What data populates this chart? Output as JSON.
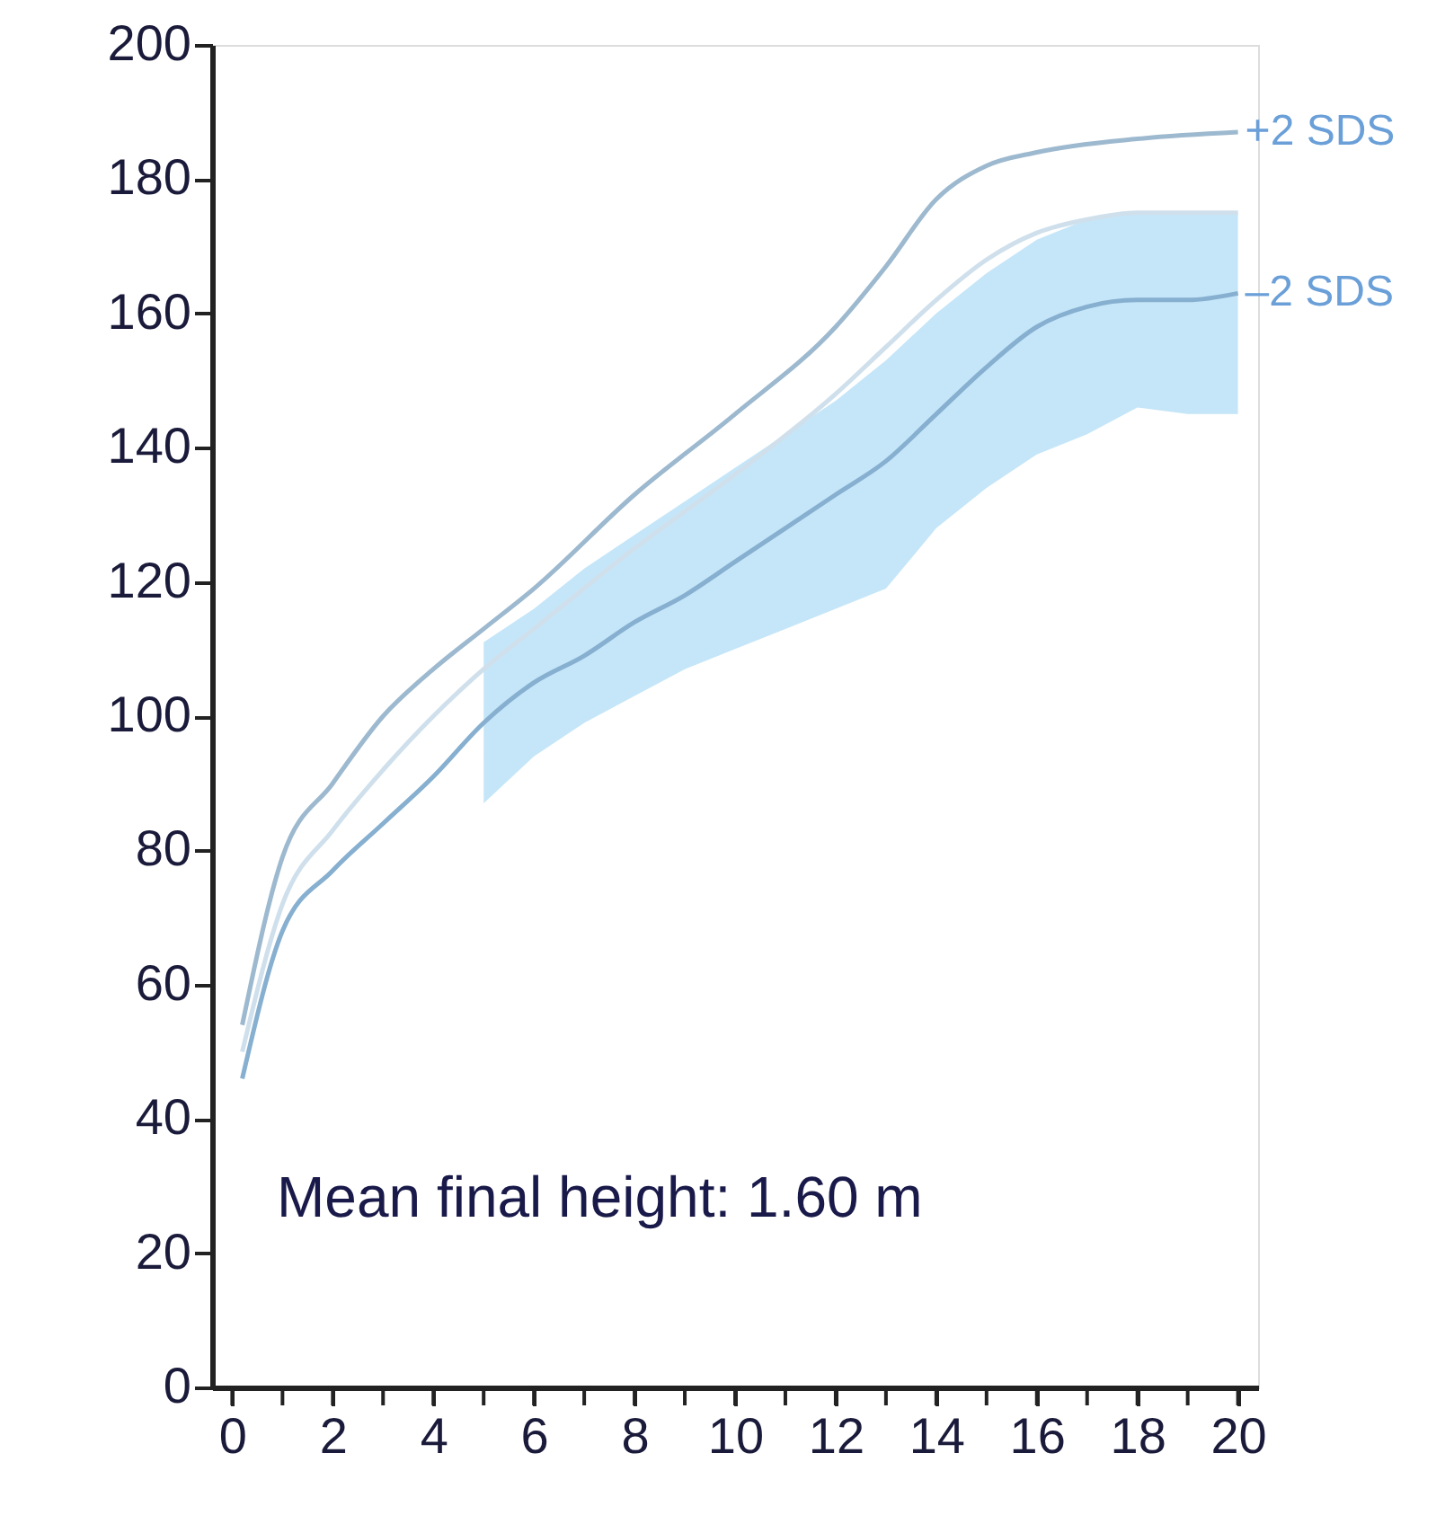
{
  "chart_data": {
    "type": "line",
    "xlim": [
      -0.4,
      20.4
    ],
    "ylim": [
      0,
      200
    ],
    "xticks": [
      0,
      {
        "value": 1,
        "label": null
      },
      2,
      {
        "value": 3,
        "label": null
      },
      4,
      {
        "value": 5,
        "label": null
      },
      6,
      {
        "value": 7,
        "label": null
      },
      8,
      {
        "value": 9,
        "label": null
      },
      10,
      {
        "value": 11,
        "label": null
      },
      12,
      {
        "value": 13,
        "label": null
      },
      14,
      {
        "value": 15,
        "label": null
      },
      16,
      {
        "value": 17,
        "label": null
      },
      18,
      {
        "value": 19,
        "label": null
      },
      20
    ],
    "yticks": [
      0,
      20,
      40,
      60,
      80,
      100,
      120,
      140,
      160,
      180,
      200
    ],
    "grid": false,
    "line_style": "solid",
    "marker": "none",
    "annotations": [
      "Mean final height: 1.60 m"
    ],
    "series": [
      {
        "name": "+2 SDS",
        "color": "#9db9cf",
        "x": [
          0.2,
          1,
          2,
          3,
          4,
          5,
          6,
          8,
          10,
          12,
          13,
          14,
          15,
          16,
          18,
          20
        ],
        "values": [
          54,
          79,
          90,
          100,
          107,
          113,
          119,
          133,
          145,
          158,
          167,
          177,
          182,
          184,
          186,
          187
        ]
      },
      {
        "color": "#cfe0ec",
        "x": [
          0.2,
          1,
          2,
          3,
          4,
          5,
          6,
          8,
          10,
          12,
          13,
          14,
          15,
          16,
          17,
          18,
          20
        ],
        "values": [
          50,
          72,
          83,
          92,
          100,
          107,
          113,
          125,
          136,
          148,
          155,
          162,
          168,
          172,
          174,
          175,
          175
        ]
      },
      {
        "name": "–2 SDS",
        "color": "#86afd0",
        "x": [
          0.2,
          1,
          2,
          3,
          4,
          5,
          6,
          7,
          8,
          9,
          10,
          11,
          12,
          13,
          14,
          15,
          16,
          17,
          18,
          19,
          20
        ],
        "values": [
          46,
          68,
          77,
          84,
          91,
          99,
          105,
          109,
          114,
          118,
          123,
          128,
          133,
          138,
          145,
          152,
          158,
          161,
          162,
          162,
          163
        ],
        "lower": [
          null,
          null,
          null,
          null,
          null,
          87,
          94,
          99,
          103,
          107,
          110,
          113,
          116,
          119,
          128,
          134,
          139,
          142,
          146,
          145,
          145
        ],
        "upper": [
          null,
          null,
          null,
          null,
          null,
          111,
          116,
          122,
          127,
          132,
          137,
          142,
          147,
          153,
          160,
          166,
          171,
          174,
          175,
          175,
          175
        ]
      }
    ]
  }
}
